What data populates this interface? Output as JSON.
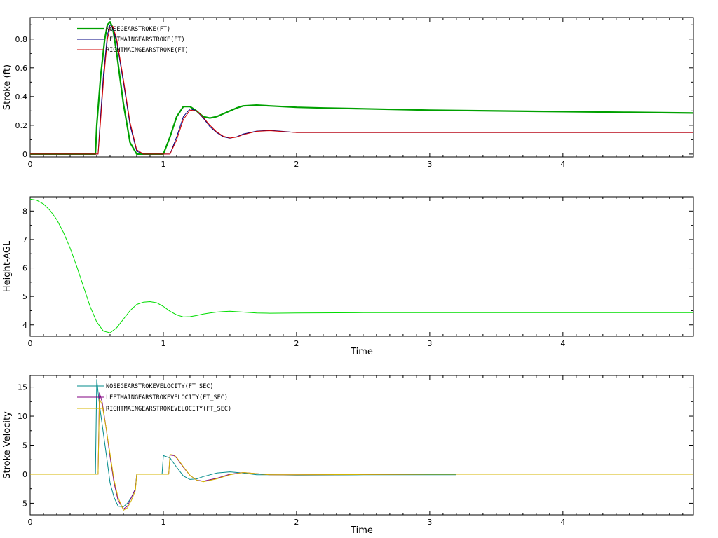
{
  "chart_data": [
    {
      "type": "line",
      "title": "",
      "xlabel": "",
      "ylabel": "Stroke (ft)",
      "xlim": [
        0,
        4.98
      ],
      "ylim": [
        -0.02,
        0.95
      ],
      "xticks": [
        0,
        1,
        2,
        3,
        4
      ],
      "yticks": [
        0,
        0.2,
        0.4,
        0.6,
        0.8
      ],
      "ytick_labels": [
        "0",
        "0.2",
        "0.4",
        "0.6",
        "0.8"
      ],
      "grid": false,
      "legend_position": "top-left",
      "series": [
        {
          "name": "NOSEGEARSTROKE(FT)",
          "color": "#00a000",
          "width": 2.2,
          "x": [
            0,
            0.49,
            0.5,
            0.53,
            0.56,
            0.58,
            0.6,
            0.62,
            0.65,
            0.7,
            0.75,
            0.8,
            0.85,
            0.9,
            0.95,
            1.0,
            1.05,
            1.1,
            1.15,
            1.2,
            1.25,
            1.3,
            1.35,
            1.4,
            1.45,
            1.5,
            1.55,
            1.6,
            1.7,
            1.8,
            1.9,
            2.0,
            2.2,
            2.5,
            3.0,
            3.5,
            4.0,
            4.5,
            4.98
          ],
          "y": [
            0,
            0,
            0.2,
            0.55,
            0.8,
            0.9,
            0.92,
            0.88,
            0.7,
            0.35,
            0.08,
            0,
            0,
            0,
            0,
            0,
            0.12,
            0.26,
            0.33,
            0.33,
            0.3,
            0.26,
            0.25,
            0.26,
            0.28,
            0.3,
            0.32,
            0.335,
            0.34,
            0.335,
            0.33,
            0.325,
            0.32,
            0.315,
            0.305,
            0.3,
            0.295,
            0.29,
            0.285
          ]
        },
        {
          "name": "LEFTMAINGEARSTROKE(FT)",
          "color": "#000080",
          "width": 1.0,
          "x": [
            0,
            0.51,
            0.52,
            0.55,
            0.58,
            0.6,
            0.62,
            0.65,
            0.7,
            0.75,
            0.8,
            0.85,
            0.9,
            0.95,
            1.0,
            1.05,
            1.1,
            1.15,
            1.2,
            1.25,
            1.3,
            1.35,
            1.4,
            1.45,
            1.5,
            1.55,
            1.6,
            1.7,
            1.8,
            1.9,
            2.0,
            2.2,
            2.5,
            3.0,
            3.5,
            4.0,
            4.5,
            4.98
          ],
          "y": [
            0,
            0,
            0.15,
            0.55,
            0.83,
            0.9,
            0.88,
            0.78,
            0.5,
            0.2,
            0.02,
            0,
            0,
            0,
            0,
            0,
            0.12,
            0.26,
            0.315,
            0.3,
            0.25,
            0.19,
            0.15,
            0.12,
            0.11,
            0.12,
            0.14,
            0.16,
            0.165,
            0.158,
            0.15,
            0.15,
            0.15,
            0.15,
            0.15,
            0.15,
            0.15,
            0.15
          ]
        },
        {
          "name": "RIGHTMAINGEARSTROKE(FT)",
          "color": "#d00000",
          "width": 1.0,
          "x": [
            0,
            0.51,
            0.52,
            0.55,
            0.58,
            0.6,
            0.62,
            0.65,
            0.7,
            0.75,
            0.8,
            0.85,
            0.9,
            0.95,
            1.0,
            1.05,
            1.1,
            1.15,
            1.2,
            1.25,
            1.3,
            1.35,
            1.4,
            1.45,
            1.5,
            1.55,
            1.6,
            1.7,
            1.8,
            1.9,
            2.0,
            2.2,
            2.5,
            3.0,
            3.5,
            4.0,
            4.5,
            4.98
          ],
          "y": [
            0,
            0,
            0.12,
            0.5,
            0.8,
            0.88,
            0.89,
            0.8,
            0.52,
            0.22,
            0.03,
            0,
            0,
            0,
            0,
            0,
            0.1,
            0.24,
            0.305,
            0.3,
            0.255,
            0.2,
            0.155,
            0.125,
            0.112,
            0.118,
            0.135,
            0.158,
            0.163,
            0.156,
            0.15,
            0.15,
            0.15,
            0.15,
            0.15,
            0.15,
            0.15,
            0.15
          ]
        }
      ]
    },
    {
      "type": "line",
      "title": "",
      "xlabel": "Time",
      "ylabel": "Height-AGL",
      "xlim": [
        0,
        4.98
      ],
      "ylim": [
        3.6,
        8.5
      ],
      "xticks": [
        0,
        1,
        2,
        3,
        4
      ],
      "yticks": [
        4,
        5,
        6,
        7,
        8
      ],
      "ytick_labels": [
        "4",
        "5",
        "6",
        "7",
        "8"
      ],
      "grid": false,
      "legend_position": "",
      "series": [
        {
          "name": "",
          "color": "#00dd00",
          "width": 1.0,
          "x": [
            0,
            0.05,
            0.1,
            0.15,
            0.2,
            0.25,
            0.3,
            0.35,
            0.4,
            0.45,
            0.5,
            0.55,
            0.6,
            0.65,
            0.7,
            0.75,
            0.8,
            0.85,
            0.9,
            0.95,
            1.0,
            1.05,
            1.1,
            1.15,
            1.2,
            1.25,
            1.3,
            1.35,
            1.4,
            1.45,
            1.5,
            1.6,
            1.7,
            1.8,
            2.0,
            2.5,
            3.0,
            3.5,
            4.0,
            4.5,
            4.98
          ],
          "y": [
            8.42,
            8.38,
            8.25,
            8.02,
            7.7,
            7.25,
            6.7,
            6.05,
            5.35,
            4.65,
            4.1,
            3.78,
            3.72,
            3.9,
            4.2,
            4.5,
            4.72,
            4.8,
            4.82,
            4.78,
            4.65,
            4.48,
            4.35,
            4.28,
            4.29,
            4.33,
            4.38,
            4.42,
            4.45,
            4.47,
            4.48,
            4.45,
            4.42,
            4.41,
            4.42,
            4.43,
            4.43,
            4.43,
            4.43,
            4.43,
            4.43
          ]
        }
      ]
    },
    {
      "type": "line",
      "title": "",
      "xlabel": "Time",
      "ylabel": "Stroke Velocity",
      "xlim": [
        0,
        4.98
      ],
      "ylim": [
        -7,
        17
      ],
      "xticks": [
        0,
        1,
        2,
        3,
        4
      ],
      "yticks": [
        -5,
        0,
        5,
        10,
        15
      ],
      "ytick_labels": [
        "-5",
        "0",
        "5",
        "10",
        "15"
      ],
      "grid": false,
      "legend_position": "top-left",
      "series": [
        {
          "name": "NOSEGEARSTROKEVELOCITY(FT_SEC)",
          "color": "#008b8b",
          "width": 1.0,
          "x": [
            0,
            0.49,
            0.5,
            0.52,
            0.55,
            0.58,
            0.6,
            0.63,
            0.66,
            0.7,
            0.73,
            0.76,
            0.79,
            0.8,
            0.81,
            0.85,
            0.9,
            0.95,
            0.99,
            1.0,
            1.05,
            1.1,
            1.15,
            1.2,
            1.25,
            1.3,
            1.4,
            1.5,
            1.6,
            1.7,
            1.8,
            2.0,
            2.5,
            3.0,
            3.2
          ],
          "y": [
            0,
            0,
            16.3,
            12,
            7,
            2,
            -1.5,
            -4,
            -5.5,
            -5.6,
            -5,
            -4,
            -2.5,
            0,
            0,
            0,
            0,
            0,
            0,
            3.2,
            2.8,
            1.2,
            -0.3,
            -0.9,
            -0.8,
            -0.4,
            0.2,
            0.4,
            0.2,
            -0.1,
            -0.1,
            -0.15,
            -0.1,
            -0.1,
            -0.1
          ]
        },
        {
          "name": "LEFTMAINGEARSTROKEVELOCITY(FT_SEC)",
          "color": "#800080",
          "width": 1.0,
          "x": [
            0,
            0.51,
            0.52,
            0.54,
            0.57,
            0.6,
            0.63,
            0.66,
            0.7,
            0.73,
            0.76,
            0.79,
            0.8,
            0.85,
            0.9,
            0.95,
            1.0,
            1.04,
            1.05,
            1.08,
            1.1,
            1.15,
            1.2,
            1.25,
            1.3,
            1.4,
            1.5,
            1.6,
            1.7,
            1.8,
            2.0,
            2.5,
            3.0,
            4.0,
            4.98
          ],
          "y": [
            0,
            0,
            14,
            12.5,
            8,
            3,
            -1.5,
            -4.5,
            -6,
            -5.5,
            -4,
            -2.5,
            0,
            0,
            0,
            0,
            0,
            0,
            3.3,
            3.2,
            2.8,
            1.2,
            -0.2,
            -1,
            -1.2,
            -0.7,
            0,
            0.3,
            0.1,
            -0.1,
            -0.1,
            -0.05,
            0,
            0,
            0
          ]
        },
        {
          "name": "RIGHTMAINGEARSTROKEVELOCITY(FT_SEC)",
          "color": "#d4b400",
          "width": 1.0,
          "x": [
            0,
            0.51,
            0.52,
            0.54,
            0.57,
            0.6,
            0.63,
            0.66,
            0.7,
            0.73,
            0.76,
            0.79,
            0.8,
            0.85,
            0.9,
            0.95,
            1.0,
            1.04,
            1.05,
            1.08,
            1.1,
            1.15,
            1.2,
            1.25,
            1.3,
            1.4,
            1.5,
            1.6,
            1.7,
            1.8,
            2.0,
            2.5,
            3.0,
            4.0,
            4.98
          ],
          "y": [
            0,
            0,
            13,
            12,
            8,
            3.5,
            -1,
            -4,
            -6.2,
            -5.8,
            -4.5,
            -2.8,
            0,
            0,
            0,
            0,
            0,
            0,
            3.4,
            3.3,
            2.9,
            1.3,
            -0.2,
            -1,
            -1.3,
            -0.8,
            -0.1,
            0.3,
            0.1,
            -0.1,
            -0.1,
            -0.05,
            0,
            0,
            0
          ]
        }
      ]
    }
  ]
}
